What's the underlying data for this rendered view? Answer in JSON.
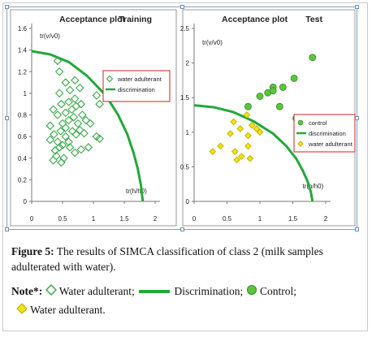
{
  "figure": {
    "label": "Figure 5:",
    "caption": "The results of SIMCA classification of class 2 (milk samples adulterated with water)."
  },
  "note": {
    "label": "Note*:",
    "items": [
      {
        "symbol": "green-open-diamond",
        "text": "Water adulterant;"
      },
      {
        "symbol": "green-line",
        "text": "Discrimination;"
      },
      {
        "symbol": "green-filled-circle",
        "text": "Control;"
      },
      {
        "symbol": "yellow-filled-diamond",
        "text": "Water adulterant."
      }
    ]
  },
  "colors": {
    "line": "#22a83a",
    "diamond_open": "#3aa84a",
    "control": "#5fc43a",
    "yellow": "#f0e41a",
    "legend_border": "#cc2222"
  },
  "chart_data": [
    {
      "type": "scatter",
      "title": "Acceptance plot",
      "subtitle": "Training",
      "xlabel": "tr(h/h0)",
      "ylabel": "tr(v/v0)",
      "xlim": [
        0,
        2
      ],
      "ylim": [
        0,
        1.6
      ],
      "xticks": [
        "0",
        "0.5",
        "1",
        "1.5",
        "2"
      ],
      "yticks": [
        "0",
        "0.2",
        "0.4",
        "0.6",
        "0.8",
        "1",
        "1.2",
        "1.4",
        "1.6"
      ],
      "legend_position": "right",
      "series": [
        {
          "name": "water adulterant",
          "marker": "open-diamond",
          "points": [
            [
              0.35,
              0.38
            ],
            [
              0.4,
              0.42
            ],
            [
              0.48,
              0.36
            ],
            [
              0.52,
              0.4
            ],
            [
              0.38,
              0.47
            ],
            [
              0.45,
              0.5
            ],
            [
              0.5,
              0.52
            ],
            [
              0.42,
              0.55
            ],
            [
              0.3,
              0.57
            ],
            [
              0.55,
              0.6
            ],
            [
              0.6,
              0.55
            ],
            [
              0.62,
              0.5
            ],
            [
              0.7,
              0.45
            ],
            [
              0.8,
              0.48
            ],
            [
              0.36,
              0.62
            ],
            [
              0.47,
              0.65
            ],
            [
              0.55,
              0.68
            ],
            [
              0.66,
              0.65
            ],
            [
              0.72,
              0.62
            ],
            [
              0.78,
              0.66
            ],
            [
              0.85,
              0.63
            ],
            [
              0.5,
              0.72
            ],
            [
              0.6,
              0.75
            ],
            [
              0.68,
              0.78
            ],
            [
              0.75,
              0.72
            ],
            [
              0.42,
              0.8
            ],
            [
              0.55,
              0.82
            ],
            [
              0.65,
              0.85
            ],
            [
              0.72,
              0.88
            ],
            [
              0.82,
              0.8
            ],
            [
              0.88,
              0.75
            ],
            [
              0.6,
              0.92
            ],
            [
              0.7,
              0.95
            ],
            [
              0.8,
              0.9
            ],
            [
              0.48,
              0.9
            ],
            [
              0.35,
              0.85
            ],
            [
              0.45,
              1.0
            ],
            [
              0.62,
              1.03
            ],
            [
              0.78,
              1.05
            ],
            [
              0.55,
              1.1
            ],
            [
              0.7,
              1.12
            ],
            [
              0.42,
              1.3
            ],
            [
              0.45,
              1.2
            ],
            [
              0.95,
              0.72
            ],
            [
              1.05,
              0.6
            ],
            [
              1.1,
              0.58
            ],
            [
              1.05,
              0.98
            ],
            [
              1.1,
              0.9
            ],
            [
              0.3,
              0.7
            ],
            [
              0.92,
              0.5
            ]
          ]
        },
        {
          "name": "discrimination",
          "marker": "line",
          "x": [
            0,
            0.3,
            0.6,
            0.9,
            1.2,
            1.4,
            1.55,
            1.65,
            1.72,
            1.77,
            1.8
          ],
          "y": [
            1.39,
            1.36,
            1.29,
            1.16,
            0.98,
            0.8,
            0.62,
            0.45,
            0.3,
            0.15,
            0.0
          ]
        }
      ]
    },
    {
      "type": "scatter",
      "title": "Acceptance plot",
      "subtitle": "Test",
      "xlabel": "tr(h/h0)",
      "ylabel": "tr(v/v0)",
      "xlim": [
        0,
        2
      ],
      "ylim": [
        0,
        2.5
      ],
      "xticks": [
        "0",
        "0.5",
        "1",
        "1.5",
        "2"
      ],
      "yticks": [
        "0",
        "0.5",
        "1",
        "1.5",
        "2",
        "2.5"
      ],
      "legend_position": "right",
      "series": [
        {
          "name": "control",
          "marker": "filled-circle",
          "points": [
            [
              0.82,
              1.37
            ],
            [
              1.0,
              1.52
            ],
            [
              1.12,
              1.57
            ],
            [
              1.2,
              1.65
            ],
            [
              1.2,
              1.6
            ],
            [
              1.35,
              1.65
            ],
            [
              1.52,
              1.78
            ],
            [
              1.55,
              1.2
            ],
            [
              1.3,
              1.37
            ],
            [
              1.8,
              2.08
            ]
          ]
        },
        {
          "name": "discrimination",
          "marker": "line",
          "x": [
            0,
            0.3,
            0.6,
            0.9,
            1.2,
            1.4,
            1.55,
            1.65,
            1.72,
            1.77,
            1.8
          ],
          "y": [
            1.39,
            1.36,
            1.29,
            1.16,
            0.98,
            0.8,
            0.62,
            0.45,
            0.3,
            0.15,
            0.0
          ]
        },
        {
          "name": "water adulterant",
          "marker": "filled-diamond",
          "points": [
            [
              0.28,
              0.72
            ],
            [
              0.4,
              0.8
            ],
            [
              0.55,
              0.98
            ],
            [
              0.6,
              1.15
            ],
            [
              0.62,
              0.72
            ],
            [
              0.65,
              0.6
            ],
            [
              0.7,
              1.05
            ],
            [
              0.8,
              1.25
            ],
            [
              0.82,
              0.8
            ],
            [
              0.82,
              0.95
            ],
            [
              0.85,
              0.62
            ],
            [
              0.88,
              1.1
            ],
            [
              0.95,
              1.05
            ],
            [
              1.0,
              1.0
            ],
            [
              0.72,
              0.65
            ]
          ]
        }
      ]
    }
  ]
}
